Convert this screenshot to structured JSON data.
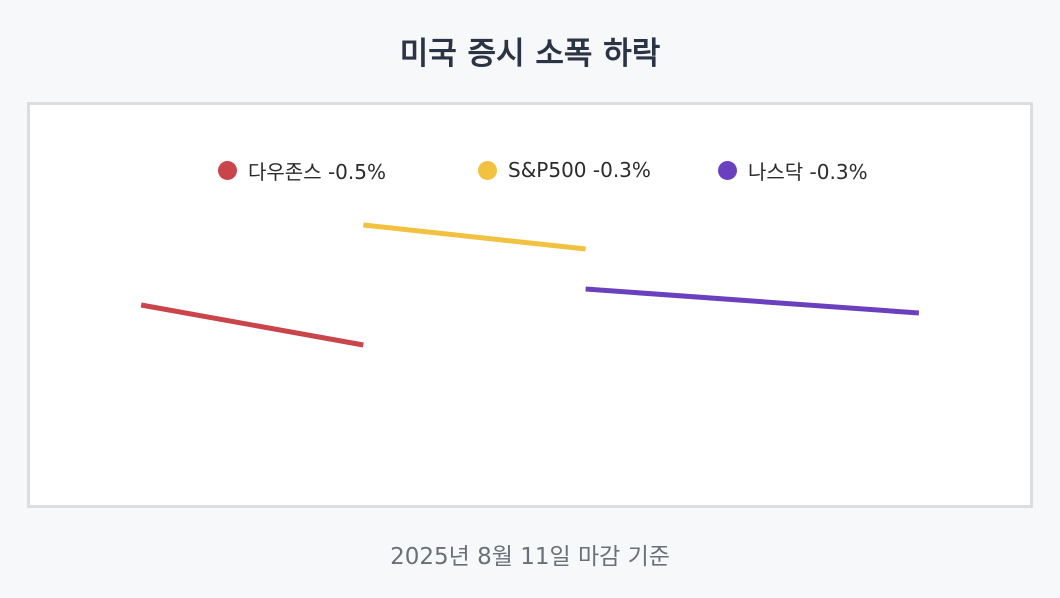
{
  "title": "미국 증시 소폭 하락",
  "footnote": "2025년 8월 11일 마감 기준",
  "chart_data": {
    "type": "line",
    "title": "미국 증시 소폭 하락",
    "legend_position": "top",
    "grid": false,
    "series": [
      {
        "name": "다우존스",
        "label": "다우존스 -0.5%",
        "change_pct": -0.5,
        "color": "#c9454a",
        "x": [
          0,
          1
        ],
        "values": [
          0.0,
          -0.5
        ]
      },
      {
        "name": "S&P500",
        "label": "S&P500 -0.3%",
        "change_pct": -0.3,
        "color": "#f2c13f",
        "x": [
          1,
          2
        ],
        "values": [
          1.0,
          0.7
        ]
      },
      {
        "name": "나스닥",
        "label": "나스닥 -0.3%",
        "change_pct": -0.3,
        "color": "#6a40bf",
        "x": [
          2,
          3.5
        ],
        "values": [
          0.2,
          -0.1
        ]
      }
    ],
    "xlim": [
      -0.5,
      4
    ],
    "ylim": [
      -2.5,
      2.5
    ]
  }
}
